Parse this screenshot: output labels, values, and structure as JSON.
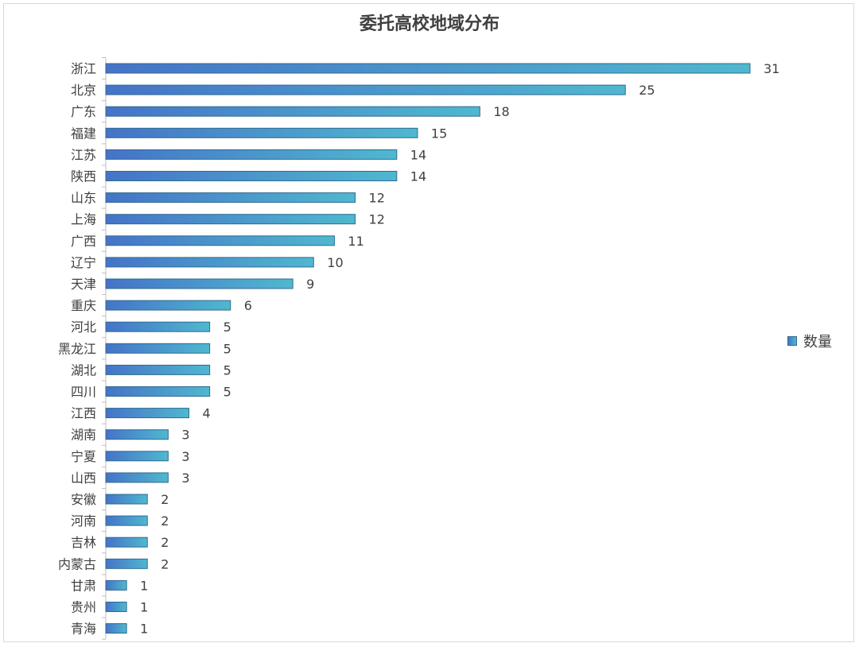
{
  "chart_data": {
    "type": "bar",
    "orientation": "horizontal",
    "title": "委托高校地域分布",
    "categories": [
      "浙江",
      "北京",
      "广东",
      "福建",
      "江苏",
      "陕西",
      "山东",
      "上海",
      "广西",
      "辽宁",
      "天津",
      "重庆",
      "河北",
      "黑龙江",
      "湖北",
      "四川",
      "江西",
      "湖南",
      "宁夏",
      "山西",
      "安徽",
      "河南",
      "吉林",
      "内蒙古",
      "甘肃",
      "贵州",
      "青海"
    ],
    "series": [
      {
        "name": "数量",
        "values": [
          31,
          25,
          18,
          15,
          14,
          14,
          12,
          12,
          11,
          10,
          9,
          6,
          5,
          5,
          5,
          5,
          4,
          3,
          3,
          3,
          2,
          2,
          2,
          2,
          1,
          1,
          1
        ]
      }
    ],
    "xlim": [
      0,
      31
    ],
    "grid": false,
    "data_labels": true,
    "legend_position": "right",
    "colors": {
      "bar_start": "#4573c8",
      "bar_end": "#4fb8cf",
      "bar_border": "#2f6a8f",
      "axis": "#bfbfbf"
    }
  }
}
